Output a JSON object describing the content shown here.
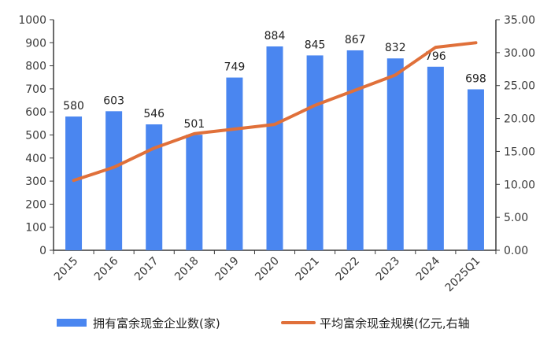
{
  "chart_data": {
    "type": "bar+line",
    "categories": [
      "2015",
      "2016",
      "2017",
      "2018",
      "2019",
      "2020",
      "2021",
      "2022",
      "2023",
      "2024",
      "2025Q1"
    ],
    "series": [
      {
        "name": "拥有富余现金企业数(家)",
        "type": "bar",
        "axis": "left",
        "color": "#4a86f0",
        "values": [
          580,
          603,
          546,
          501,
          749,
          884,
          845,
          867,
          832,
          796,
          698
        ],
        "labels": [
          "580",
          "603",
          "546",
          "501",
          "749",
          "884",
          "845",
          "867",
          "832",
          "796",
          "698"
        ]
      },
      {
        "name": "平均富余现金规模(亿元,右轴",
        "type": "line",
        "axis": "right",
        "color": "#e0703a",
        "values": [
          10.6,
          12.6,
          15.5,
          17.7,
          18.4,
          19.1,
          22.0,
          24.3,
          26.6,
          30.8,
          31.5
        ]
      }
    ],
    "y_left": {
      "min": 0,
      "max": 1000,
      "ticks": [
        "0",
        "100",
        "200",
        "300",
        "400",
        "500",
        "600",
        "700",
        "800",
        "900",
        "1000"
      ]
    },
    "y_right": {
      "min": 0,
      "max": 35,
      "ticks": [
        "0.00",
        "5.00",
        "10.00",
        "15.00",
        "20.00",
        "25.00",
        "30.00",
        "35.00"
      ]
    },
    "grid": false,
    "legend": "bottom"
  }
}
